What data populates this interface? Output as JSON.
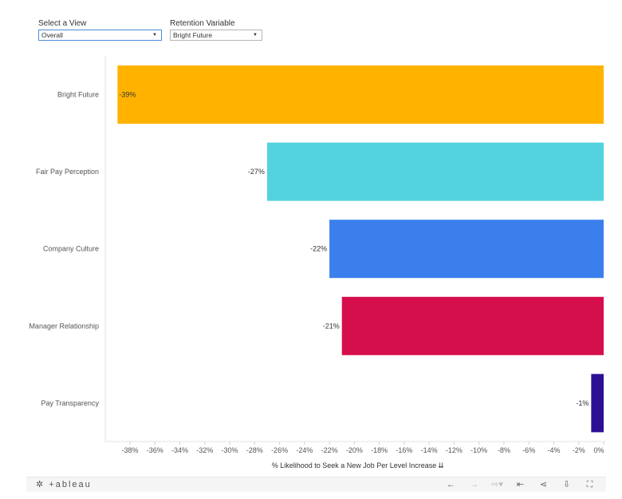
{
  "filters": {
    "view": {
      "label": "Select a View",
      "value": "Overall"
    },
    "variable": {
      "label": "Retention Variable",
      "value": "Bright Future"
    }
  },
  "chart_data": {
    "type": "bar",
    "orientation": "horizontal",
    "categories": [
      "Bright Future",
      "Fair Pay Perception",
      "Company Culture",
      "Manager Relationship",
      "Pay Transparency"
    ],
    "values": [
      -39,
      -27,
      -22,
      -21,
      -1
    ],
    "data_labels": [
      "-39%",
      "-27%",
      "-22%",
      "-21%",
      "-1%"
    ],
    "colors": [
      "#FFB300",
      "#52D3DF",
      "#3A7FEC",
      "#D50E4C",
      "#2D0F96"
    ],
    "xlabel": "% Likelihood to Seek a New Job Per Level Increase",
    "ticks": [
      "-38%",
      "-36%",
      "-34%",
      "-32%",
      "-30%",
      "-28%",
      "-26%",
      "-24%",
      "-22%",
      "-20%",
      "-18%",
      "-16%",
      "-14%",
      "-12%",
      "-10%",
      "-8%",
      "-6%",
      "-4%",
      "-2%",
      "0%"
    ],
    "xlim": [
      -39.2,
      0
    ]
  },
  "footer": {
    "logo": "+ableau",
    "icons": [
      "undo-icon",
      "redo-icon",
      "revert-icon",
      "reset-icon",
      "share-icon",
      "download-icon",
      "fullscreen-icon"
    ]
  }
}
